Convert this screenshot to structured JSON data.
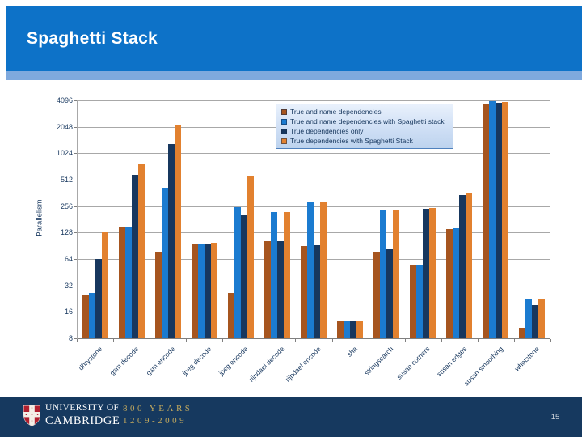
{
  "header": {
    "title": "Spaghetti Stack"
  },
  "chart_data": {
    "type": "bar",
    "title": "",
    "xlabel": "",
    "ylabel": "Parallelism",
    "y_scale": "log2",
    "ylim": [
      8,
      4096
    ],
    "yticks": [
      8,
      16,
      32,
      64,
      128,
      256,
      512,
      1024,
      2048,
      4096
    ],
    "grid": "horizontal",
    "legend_position": "inside-top-center",
    "categories": [
      "dhrystone",
      "gsm decode",
      "gsm encode",
      "jpeg decode",
      "jpeg encode",
      "rijndael decode",
      "rijndael encode",
      "sha",
      "stringsearch",
      "susan corners",
      "susan edges",
      "susan smoothing",
      "whetstone"
    ],
    "series": [
      {
        "name": "True and name dependencies",
        "color": "#a6551f",
        "values": [
          25,
          150,
          77,
          95,
          26,
          103,
          90,
          12.5,
          78,
          55,
          140,
          3700,
          10.5
        ]
      },
      {
        "name": "True and name dependencies with Spaghetti stack",
        "color": "#1b7bd0",
        "values": [
          26,
          150,
          415,
          95,
          250,
          220,
          283,
          12.5,
          230,
          55,
          143,
          3975,
          22.5
        ]
      },
      {
        "name": "True dependencies only",
        "color": "#17375e",
        "values": [
          64,
          580,
          1300,
          95,
          200,
          103,
          92,
          12.5,
          83,
          240,
          340,
          3830,
          19
        ]
      },
      {
        "name": "True dependencies with Spaghetti Stack",
        "color": "#e2812f",
        "values": [
          128,
          760,
          2150,
          97,
          560,
          220,
          285,
          12.5,
          230,
          245,
          355,
          3890,
          22.5
        ]
      }
    ]
  },
  "footer": {
    "university_line1": "UNIVERSITY OF",
    "university_line2": "CAMBRIDGE",
    "years_line1": "800 YEARS",
    "years_line2": "1209-2009",
    "page_number": "15",
    "crest_icon": "cambridge-crest"
  },
  "colors": {
    "header_blue": "#0d72c8",
    "band_blue": "#7fa9dd",
    "footer_navy": "#16395f",
    "gold": "#c3a95e",
    "text_navy": "#17375e",
    "gridline_gray": "#a8a8a8"
  }
}
